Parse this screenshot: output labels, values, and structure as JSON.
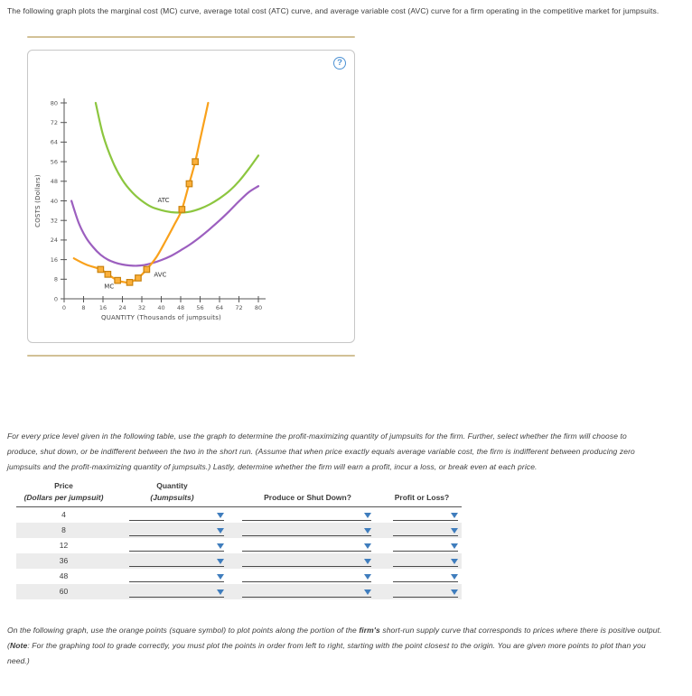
{
  "page": {
    "intro": "The following graph plots the marginal cost (MC) curve, average total cost (ATC) curve, and average variable cost (AVC) curve for a firm operating in the competitive market for jumpsuits.",
    "help_icon": "?",
    "instructions": "For every price level given in the following table, use the graph to determine the profit-maximizing quantity of jumpsuits for the firm. Further, select whether the firm will choose to produce, shut down, or be indifferent between the two in the short run. (Assume that when price exactly equals average variable cost, the firm is indifferent between producing zero jumpsuits and the profit-maximizing quantity of jumpsuits.) Lastly, determine whether the firm will earn a profit, incur a loss, or break even at each price.",
    "closing": {
      "p1": "On the following graph, use the orange points (square symbol) to plot points along the portion of the ",
      "b1": "firm's",
      "p2": " short-run supply curve that corresponds to prices where there is positive output. (",
      "b2": "Note",
      "p3": ": For the graphing tool to grade correctly, you must plot the points in order from left to right, starting with the point closest to the origin. You are given more points to plot than you need.)"
    }
  },
  "chart_data": {
    "type": "line",
    "title": "",
    "xlabel": "QUANTITY (Thousands of jumpsuits)",
    "ylabel": "COSTS (Dollars)",
    "xlim": [
      0,
      80
    ],
    "ylim": [
      0,
      80
    ],
    "xticks": [
      0,
      8,
      16,
      24,
      32,
      40,
      48,
      56,
      64,
      72,
      80
    ],
    "yticks": [
      0,
      8,
      16,
      24,
      32,
      40,
      48,
      56,
      64,
      72,
      80
    ],
    "grid": false,
    "legend": "inline-labels",
    "series": [
      {
        "name": "ATC",
        "color": "#8CC63F",
        "label_pos": [
          38.5,
          39.5
        ],
        "points": [
          [
            13,
            80
          ],
          [
            16,
            67
          ],
          [
            20,
            56
          ],
          [
            24,
            48.5
          ],
          [
            28,
            43.5
          ],
          [
            32,
            40
          ],
          [
            36,
            37.5
          ],
          [
            40,
            36.2
          ],
          [
            44,
            35.4
          ],
          [
            48,
            35.2
          ],
          [
            52,
            35.6
          ],
          [
            56,
            36.8
          ],
          [
            60,
            38.6
          ],
          [
            64,
            41
          ],
          [
            68,
            44
          ],
          [
            72,
            48
          ],
          [
            76,
            53
          ],
          [
            80,
            58.5
          ]
        ]
      },
      {
        "name": "AVC",
        "color": "#9C5FBF",
        "label_pos": [
          37,
          9
        ],
        "points": [
          [
            3,
            40
          ],
          [
            6,
            31
          ],
          [
            9,
            25
          ],
          [
            12,
            21
          ],
          [
            15,
            18
          ],
          [
            18,
            16
          ],
          [
            21,
            14.8
          ],
          [
            24,
            14
          ],
          [
            27,
            13.6
          ],
          [
            30,
            13.5
          ],
          [
            33,
            13.8
          ],
          [
            36,
            14.5
          ],
          [
            40,
            15.8
          ],
          [
            44,
            17.5
          ],
          [
            48,
            19.8
          ],
          [
            52,
            22.3
          ],
          [
            56,
            25.2
          ],
          [
            60,
            28.5
          ],
          [
            64,
            32
          ],
          [
            68,
            35.8
          ],
          [
            72,
            39.8
          ],
          [
            76,
            43.5
          ],
          [
            80,
            46
          ]
        ]
      },
      {
        "name": "MC",
        "color": "#F9A11B",
        "label_pos": [
          16.5,
          4.2
        ],
        "points": [
          [
            4,
            16.5
          ],
          [
            9,
            14
          ],
          [
            15,
            12
          ],
          [
            18,
            10
          ],
          [
            22,
            7.5
          ],
          [
            25,
            6.8
          ],
          [
            27,
            6.7
          ],
          [
            30.5,
            8.5
          ],
          [
            34,
            12
          ],
          [
            38,
            17
          ],
          [
            42,
            24
          ],
          [
            45.5,
            30.5
          ],
          [
            48.5,
            36.5
          ],
          [
            51.5,
            47
          ],
          [
            54,
            56
          ],
          [
            56,
            65
          ],
          [
            58,
            74
          ],
          [
            59.3,
            80
          ]
        ]
      }
    ],
    "markers": {
      "shape": "square",
      "color": "#FBB03B",
      "border": "#C9820E",
      "size": 6.5,
      "points": [
        [
          15,
          12
        ],
        [
          18,
          10
        ],
        [
          22,
          7.5
        ],
        [
          27,
          6.7
        ],
        [
          30.5,
          8.5
        ],
        [
          34,
          12
        ],
        [
          48.5,
          36.5
        ],
        [
          51.5,
          47
        ],
        [
          54,
          56
        ]
      ]
    }
  },
  "table": {
    "headers": {
      "price1": "Price",
      "price2": "(Dollars per jumpsuit)",
      "qty1": "Quantity",
      "qty2": "(Jumpsuits)",
      "produce": "Produce or Shut Down?",
      "profit": "Profit or Loss?"
    },
    "rows": [
      {
        "price": "4"
      },
      {
        "price": "8"
      },
      {
        "price": "12"
      },
      {
        "price": "36"
      },
      {
        "price": "48"
      },
      {
        "price": "60"
      }
    ]
  }
}
